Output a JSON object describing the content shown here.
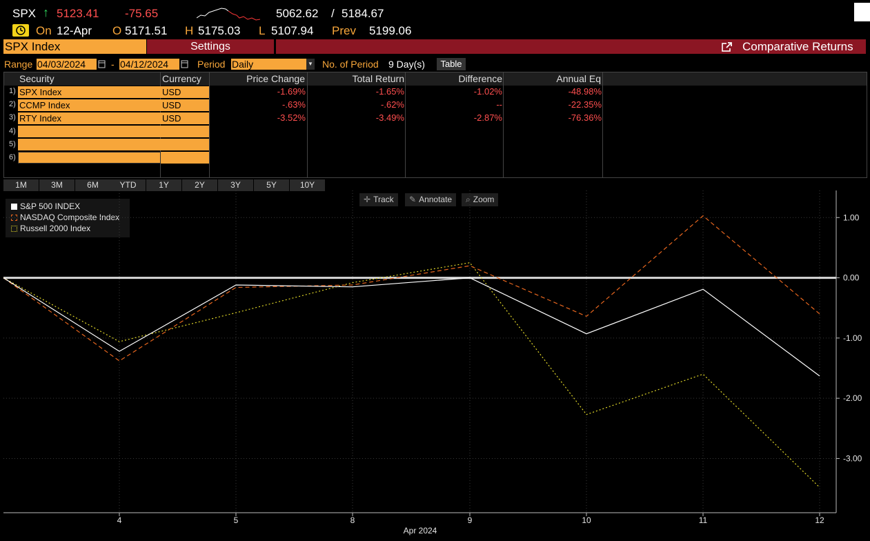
{
  "ticker": {
    "symbol": "SPX",
    "arrow": "↑",
    "last": "5123.41",
    "change": "-75.65",
    "range_low": "5062.62",
    "range_sep": "/",
    "range_high": "5184.67",
    "on_label": "On",
    "date": "12-Apr",
    "open_label": "O",
    "open": "5171.51",
    "high_label": "H",
    "high": "5175.03",
    "low_label": "L",
    "low": "5107.94",
    "prev_label": "Prev",
    "prev": "5199.06"
  },
  "tabs": {
    "security": "SPX Index",
    "settings": "Settings",
    "function": "Comparative Returns"
  },
  "controls": {
    "range_label": "Range",
    "start_date": "04/03/2024",
    "dash": "-",
    "end_date": "04/12/2024",
    "period_label": "Period",
    "period_value": "Daily",
    "periods_label": "No. of Period",
    "periods_value": "9 Day(s)",
    "table_button": "Table"
  },
  "table": {
    "headers": [
      "Security",
      "Currency",
      "Price Change",
      "Total Return",
      "Difference",
      "Annual Eq"
    ],
    "rows": [
      {
        "num": "1)",
        "security": "SPX Index",
        "currency": "USD",
        "price_change": "-1.69%",
        "total_return": "-1.65%",
        "difference": "-1.02%",
        "annual_eq": "-48.98%"
      },
      {
        "num": "2)",
        "security": "CCMP Index",
        "currency": "USD",
        "price_change": "-.63%",
        "total_return": "-.62%",
        "difference": "--",
        "annual_eq": "-22.35%"
      },
      {
        "num": "3)",
        "security": "RTY Index",
        "currency": "USD",
        "price_change": "-3.52%",
        "total_return": "-3.49%",
        "difference": "-2.87%",
        "annual_eq": "-76.36%"
      },
      {
        "num": "4)",
        "security": "",
        "currency": "",
        "price_change": "",
        "total_return": "",
        "difference": "",
        "annual_eq": ""
      },
      {
        "num": "5)",
        "security": "",
        "currency": "",
        "price_change": "",
        "total_return": "",
        "difference": "",
        "annual_eq": ""
      },
      {
        "num": "6)",
        "security": "",
        "currency": "",
        "price_change": "",
        "total_return": "",
        "difference": "",
        "annual_eq": ""
      }
    ]
  },
  "ranges": [
    "1M",
    "3M",
    "6M",
    "YTD",
    "1Y",
    "2Y",
    "3Y",
    "5Y",
    "10Y"
  ],
  "tools": {
    "track": "Track",
    "annotate": "Annotate",
    "zoom": "Zoom"
  },
  "chart_data": {
    "type": "line",
    "x_ticks": [
      "4",
      "5",
      "8",
      "9",
      "10",
      "11",
      "12"
    ],
    "x_caption": "Apr 2024",
    "y_ticks": [
      "1.00",
      "0.00",
      "-1.00",
      "-2.00",
      "-3.00"
    ],
    "ylim": [
      -3.9,
      1.45
    ],
    "series": [
      {
        "name": "S&P 500 INDEX",
        "color": "#ffffff",
        "dash": "solid",
        "values": [
          0.0,
          -1.22,
          -0.12,
          -0.15,
          0.0,
          -0.93,
          -0.19,
          -1.63
        ]
      },
      {
        "name": "NASDAQ Composite Index",
        "color": "#e8661e",
        "dash": "dashed",
        "values": [
          0.0,
          -1.38,
          -0.16,
          -0.12,
          0.2,
          -0.64,
          1.03,
          -0.6
        ]
      },
      {
        "name": "Russell 2000 Index",
        "color": "#e3d929",
        "dash": "dotted",
        "values": [
          0.0,
          -1.06,
          -0.58,
          -0.08,
          0.25,
          -2.27,
          -1.6,
          -3.48
        ]
      }
    ]
  }
}
